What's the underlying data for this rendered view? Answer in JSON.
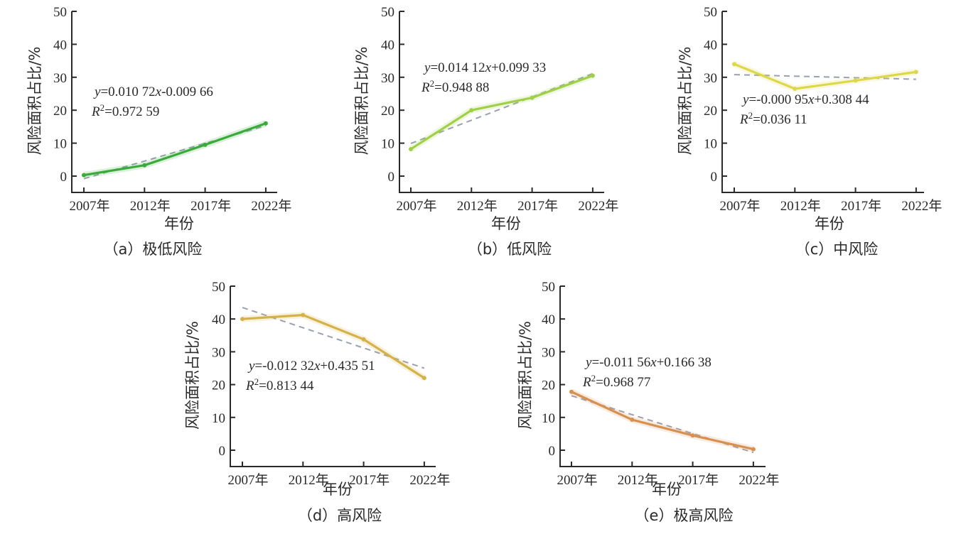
{
  "chart_data": [
    {
      "id": "a",
      "type": "line",
      "caption": "（a）极低风险",
      "xlabel": "年份",
      "ylabel": "风险面积占比/%",
      "categories": [
        "2007年",
        "2012年",
        "2017年",
        "2022年"
      ],
      "yticks": [
        "0",
        "10",
        "20",
        "30",
        "40",
        "50"
      ],
      "ylim": [
        -5,
        50
      ],
      "series": [
        {
          "name": "极低风险",
          "color": "#3aaa3a",
          "values": [
            0.3,
            3.3,
            9.5,
            16.0
          ]
        }
      ],
      "trendline": {
        "values": [
          -0.8,
          15.3
        ],
        "equation_y": "y=0.010 72x-0.009 66",
        "equation_r2": "R2=0.972 59",
        "slope": 0.01072,
        "intercept": -0.00966,
        "r2": 0.97259
      },
      "equation": {
        "y_prefix": "y",
        "y_rest": "=0.010 72",
        "x_var": "x",
        "tail": "-0.009 66",
        "r_prefix": "R",
        "r_sup": "2",
        "r_rest": "=0.972 59"
      },
      "grid": false,
      "legend": "none"
    },
    {
      "id": "b",
      "type": "line",
      "caption": "（b）低风险",
      "xlabel": "年份",
      "ylabel": "风险面积占比/%",
      "categories": [
        "2007年",
        "2012年",
        "2017年",
        "2022年"
      ],
      "yticks": [
        "0",
        "10",
        "20",
        "30",
        "40",
        "50"
      ],
      "ylim": [
        -5,
        50
      ],
      "series": [
        {
          "name": "低风险",
          "color": "#9fd048",
          "values": [
            8.2,
            20.0,
            23.8,
            30.5
          ]
        }
      ],
      "trendline": {
        "values": [
          9.9,
          31.1
        ],
        "slope": 0.01412,
        "intercept": 0.09933,
        "r2": 0.94888
      },
      "equation": {
        "y_prefix": "y",
        "y_rest": "=0.014 12",
        "x_var": "x",
        "tail": "+0.099 33",
        "r_prefix": "R",
        "r_sup": "2",
        "r_rest": "=0.948 88"
      },
      "grid": false,
      "legend": "none"
    },
    {
      "id": "c",
      "type": "line",
      "caption": "（c）中风险",
      "xlabel": "年份",
      "ylabel": "风险面积占比/%",
      "categories": [
        "2007年",
        "2012年",
        "2017年",
        "2022年"
      ],
      "yticks": [
        "0",
        "10",
        "20",
        "30",
        "40",
        "50"
      ],
      "ylim": [
        -5,
        50
      ],
      "series": [
        {
          "name": "中风险",
          "color": "#dcd84a",
          "values": [
            34.0,
            26.5,
            29.0,
            31.6
          ]
        }
      ],
      "trendline": {
        "values": [
          30.8,
          29.4
        ],
        "slope": -0.00095,
        "intercept": 0.30844,
        "r2": 0.03611
      },
      "equation": {
        "y_prefix": "y",
        "y_rest": "=-0.000 95",
        "x_var": "x",
        "tail": "+0.308 44",
        "r_prefix": "R",
        "r_sup": "2",
        "r_rest": "=0.036 11"
      },
      "grid": false,
      "legend": "none"
    },
    {
      "id": "d",
      "type": "line",
      "caption": "（d）高风险",
      "xlabel": "年份",
      "ylabel": "风险面积占比/%",
      "categories": [
        "2007年",
        "2012年",
        "2017年",
        "2022年"
      ],
      "yticks": [
        "0",
        "10",
        "20",
        "30",
        "40",
        "50"
      ],
      "ylim": [
        -5,
        50
      ],
      "series": [
        {
          "name": "高风险",
          "color": "#d4b248",
          "values": [
            40.0,
            41.2,
            33.8,
            22.0
          ]
        }
      ],
      "trendline": {
        "values": [
          43.5,
          25.0
        ],
        "slope": -0.01232,
        "intercept": 0.43551,
        "r2": 0.81344
      },
      "equation": {
        "y_prefix": "y",
        "y_rest": "=-0.012 32",
        "x_var": "x",
        "tail": "+0.435 51",
        "r_prefix": "R",
        "r_sup": "2",
        "r_rest": "=0.813 44"
      },
      "grid": false,
      "legend": "none"
    },
    {
      "id": "e",
      "type": "line",
      "caption": "（e）极高风险",
      "xlabel": "年份",
      "ylabel": "风险面积占比/%",
      "categories": [
        "2007年",
        "2012年",
        "2017年",
        "2022年"
      ],
      "yticks": [
        "0",
        "10",
        "20",
        "30",
        "40",
        "50"
      ],
      "ylim": [
        -5,
        50
      ],
      "series": [
        {
          "name": "极高风险",
          "color": "#d89050",
          "values": [
            17.8,
            9.3,
            4.5,
            0.3
          ]
        }
      ],
      "trendline": {
        "values": [
          16.6,
          -0.7
        ],
        "slope": -0.01156,
        "intercept": 0.16638,
        "r2": 0.96877
      },
      "equation": {
        "y_prefix": "y",
        "y_rest": "=-0.011 56",
        "x_var": "x",
        "tail": "+0.166 38",
        "r_prefix": "R",
        "r_sup": "2",
        "r_rest": "=0.968 77"
      },
      "grid": false,
      "legend": "none"
    }
  ]
}
